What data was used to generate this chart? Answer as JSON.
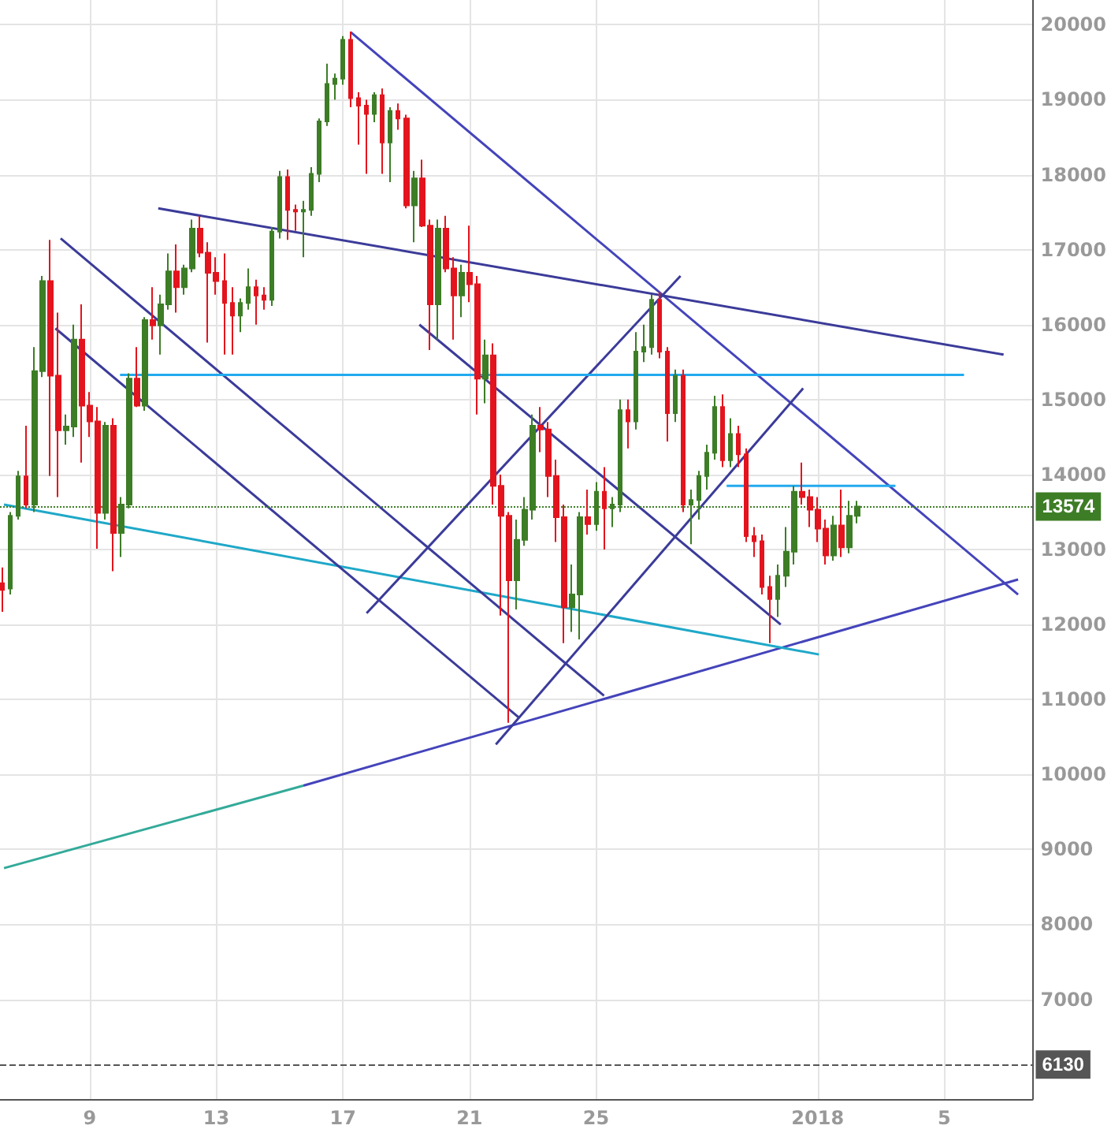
{
  "chart_data": {
    "type": "candlestick",
    "x": [
      "2017-12-06T06:00",
      "2017-12-06T12:00",
      "2017-12-06T18:00",
      "2017-12-07T00:00",
      "2017-12-07T06:00",
      "2017-12-07T12:00",
      "2017-12-07T18:00",
      "2017-12-08T00:00",
      "2017-12-08T06:00",
      "2017-12-08T12:00",
      "2017-12-08T18:00",
      "2017-12-09T00:00",
      "2017-12-09T06:00",
      "2017-12-09T12:00",
      "2017-12-09T18:00",
      "2017-12-10T00:00",
      "2017-12-10T06:00",
      "2017-12-10T12:00",
      "2017-12-10T18:00",
      "2017-12-11T00:00",
      "2017-12-11T06:00",
      "2017-12-11T12:00",
      "2017-12-11T18:00",
      "2017-12-12T00:00",
      "2017-12-12T06:00",
      "2017-12-12T12:00",
      "2017-12-12T18:00",
      "2017-12-13T00:00",
      "2017-12-13T06:00",
      "2017-12-13T12:00",
      "2017-12-13T18:00",
      "2017-12-14T00:00",
      "2017-12-14T06:00",
      "2017-12-14T12:00",
      "2017-12-14T18:00",
      "2017-12-15T00:00",
      "2017-12-15T06:00",
      "2017-12-15T12:00",
      "2017-12-15T18:00",
      "2017-12-16T00:00",
      "2017-12-16T06:00",
      "2017-12-16T12:00",
      "2017-12-16T18:00",
      "2017-12-17T00:00",
      "2017-12-17T06:00",
      "2017-12-17T12:00",
      "2017-12-17T18:00",
      "2017-12-18T00:00",
      "2017-12-18T06:00",
      "2017-12-18T12:00",
      "2017-12-18T18:00",
      "2017-12-19T00:00",
      "2017-12-19T06:00",
      "2017-12-19T12:00",
      "2017-12-19T18:00",
      "2017-12-20T00:00",
      "2017-12-20T06:00",
      "2017-12-20T12:00",
      "2017-12-20T18:00",
      "2017-12-21T00:00",
      "2017-12-21T06:00",
      "2017-12-21T12:00",
      "2017-12-21T18:00",
      "2017-12-22T00:00",
      "2017-12-22T06:00",
      "2017-12-22T12:00",
      "2017-12-22T18:00",
      "2017-12-23T00:00",
      "2017-12-23T06:00",
      "2017-12-23T12:00",
      "2017-12-23T18:00",
      "2017-12-24T00:00",
      "2017-12-24T06:00",
      "2017-12-24T12:00",
      "2017-12-24T18:00",
      "2017-12-25T00:00",
      "2017-12-25T06:00",
      "2017-12-25T12:00",
      "2017-12-25T18:00",
      "2017-12-26T00:00",
      "2017-12-26T06:00",
      "2017-12-26T12:00",
      "2017-12-26T18:00",
      "2017-12-27T00:00",
      "2017-12-27T06:00",
      "2017-12-27T12:00",
      "2017-12-27T18:00",
      "2017-12-28T00:00",
      "2017-12-28T06:00",
      "2017-12-28T12:00",
      "2017-12-28T18:00",
      "2017-12-29T00:00",
      "2017-12-29T06:00",
      "2017-12-29T12:00",
      "2017-12-29T18:00",
      "2017-12-30T00:00",
      "2017-12-30T06:00",
      "2017-12-30T12:00",
      "2017-12-30T18:00",
      "2017-12-31T00:00",
      "2017-12-31T06:00",
      "2017-12-31T12:00",
      "2017-12-31T18:00",
      "2018-01-01T00:00",
      "2018-01-01T06:00",
      "2018-01-01T12:00",
      "2018-01-01T18:00",
      "2018-01-02T00:00",
      "2018-01-02T06:00"
    ],
    "ohlc": [
      [
        12550,
        12760,
        12170,
        12460
      ],
      [
        12480,
        13500,
        12400,
        13450
      ],
      [
        13450,
        14050,
        13400,
        13975
      ],
      [
        13975,
        14650,
        13550,
        13600
      ],
      [
        13600,
        15700,
        13500,
        15380
      ],
      [
        15380,
        16650,
        15300,
        16580
      ],
      [
        16580,
        17130,
        13980,
        15320
      ],
      [
        15320,
        16160,
        13700,
        14590
      ],
      [
        14590,
        14800,
        14400,
        14640
      ],
      [
        14640,
        16000,
        14500,
        15800
      ],
      [
        15800,
        16270,
        14160,
        14920
      ],
      [
        14920,
        15100,
        14500,
        14710
      ],
      [
        14710,
        14900,
        13010,
        13490
      ],
      [
        13490,
        14700,
        13400,
        14650
      ],
      [
        14650,
        14750,
        12710,
        13220
      ],
      [
        13220,
        13700,
        12900,
        13600
      ],
      [
        13600,
        15350,
        13550,
        15280
      ],
      [
        15280,
        15700,
        14900,
        14920
      ],
      [
        14920,
        16100,
        14850,
        16060
      ],
      [
        16060,
        16500,
        15800,
        15990
      ],
      [
        15990,
        16400,
        15600,
        16270
      ],
      [
        16270,
        16950,
        16200,
        16710
      ],
      [
        16710,
        17070,
        16160,
        16500
      ],
      [
        16500,
        16800,
        16400,
        16750
      ],
      [
        16750,
        17400,
        16700,
        17280
      ],
      [
        17280,
        17450,
        16900,
        16960
      ],
      [
        16960,
        17100,
        15760,
        16690
      ],
      [
        16690,
        16900,
        16400,
        16580
      ],
      [
        16580,
        16950,
        15600,
        16290
      ],
      [
        16290,
        16500,
        15600,
        16120
      ],
      [
        16120,
        16350,
        15900,
        16290
      ],
      [
        16290,
        16750,
        16200,
        16500
      ],
      [
        16500,
        16600,
        16000,
        16390
      ],
      [
        16390,
        16500,
        16200,
        16330
      ],
      [
        16330,
        17300,
        16250,
        17240
      ],
      [
        17240,
        18050,
        17150,
        17970
      ],
      [
        17970,
        18070,
        17130,
        17530
      ],
      [
        17530,
        17600,
        17250,
        17510
      ],
      [
        17510,
        17650,
        16900,
        17530
      ],
      [
        17530,
        18100,
        17450,
        18010
      ],
      [
        18010,
        18750,
        17900,
        18710
      ],
      [
        18710,
        19480,
        18650,
        19210
      ],
      [
        19210,
        19350,
        19000,
        19280
      ],
      [
        19280,
        19850,
        19200,
        19800
      ],
      [
        19800,
        19910,
        18900,
        19020
      ],
      [
        19020,
        19100,
        18400,
        18920
      ],
      [
        18920,
        19000,
        18010,
        18810
      ],
      [
        18810,
        19100,
        18700,
        19060
      ],
      [
        19060,
        19150,
        18010,
        18430
      ],
      [
        18430,
        18900,
        17900,
        18850
      ],
      [
        18850,
        18950,
        18600,
        18750
      ],
      [
        18750,
        18800,
        17550,
        17590
      ],
      [
        17590,
        18050,
        17100,
        17950
      ],
      [
        17950,
        18200,
        17300,
        17320
      ],
      [
        17320,
        17400,
        15660,
        16270
      ],
      [
        16270,
        17400,
        15800,
        17280
      ],
      [
        17280,
        17450,
        16700,
        16750
      ],
      [
        16750,
        16900,
        15800,
        16390
      ],
      [
        16390,
        16800,
        16100,
        16690
      ],
      [
        16690,
        17320,
        16300,
        16540
      ],
      [
        16540,
        16650,
        14800,
        15280
      ],
      [
        15280,
        15800,
        14950,
        15590
      ],
      [
        15590,
        15750,
        13600,
        13850
      ],
      [
        13850,
        14000,
        12120,
        13450
      ],
      [
        13450,
        13500,
        10690,
        12590
      ],
      [
        12590,
        13400,
        12200,
        13130
      ],
      [
        13130,
        13700,
        13050,
        13530
      ],
      [
        13530,
        14800,
        13400,
        14650
      ],
      [
        14650,
        14900,
        14300,
        14600
      ],
      [
        14600,
        14700,
        13700,
        13980
      ],
      [
        13980,
        14200,
        13100,
        13430
      ],
      [
        13430,
        13600,
        11750,
        12230
      ],
      [
        12230,
        12800,
        11900,
        12400
      ],
      [
        12400,
        13500,
        11800,
        13430
      ],
      [
        13430,
        13800,
        13200,
        13340
      ],
      [
        13340,
        13900,
        13250,
        13770
      ],
      [
        13770,
        14100,
        13000,
        13550
      ],
      [
        13550,
        13700,
        13300,
        13600
      ],
      [
        13600,
        15000,
        13500,
        14860
      ],
      [
        14860,
        15000,
        14350,
        14710
      ],
      [
        14710,
        15900,
        14600,
        15640
      ],
      [
        15640,
        16000,
        15500,
        15700
      ],
      [
        15700,
        16400,
        15600,
        16330
      ],
      [
        16330,
        16440,
        15550,
        15640
      ],
      [
        15640,
        15700,
        14440,
        14820
      ],
      [
        14820,
        15400,
        14700,
        15320
      ],
      [
        15320,
        15400,
        13500,
        13600
      ],
      [
        13600,
        13800,
        13070,
        13660
      ],
      [
        13660,
        14050,
        13400,
        13980
      ],
      [
        13980,
        14400,
        13800,
        14290
      ],
      [
        14290,
        15050,
        14200,
        14900
      ],
      [
        14900,
        15070,
        14100,
        14190
      ],
      [
        14190,
        14750,
        14100,
        14540
      ],
      [
        14540,
        14650,
        14100,
        14270
      ],
      [
        14270,
        14350,
        13100,
        13180
      ],
      [
        13180,
        13300,
        12900,
        13110
      ],
      [
        13110,
        13200,
        12400,
        12500
      ],
      [
        12500,
        12650,
        11750,
        12340
      ],
      [
        12340,
        12800,
        12100,
        12650
      ],
      [
        12650,
        13300,
        12500,
        12970
      ],
      [
        12970,
        13850,
        12800,
        13770
      ],
      [
        13770,
        14160,
        13600,
        13700
      ],
      [
        13700,
        13800,
        13300,
        13530
      ],
      [
        13530,
        13700,
        13100,
        13280
      ],
      [
        13280,
        13400,
        12800,
        12920
      ],
      [
        12920,
        13450,
        12850,
        13320
      ],
      [
        13320,
        13800,
        12900,
        13030
      ],
      [
        13030,
        13650,
        12950,
        13450
      ],
      [
        13450,
        13650,
        13350,
        13574
      ]
    ],
    "colors": [
      "#e3141d",
      "#3d7d26",
      "#3d7d26",
      "#e3141d",
      "#3d7d26",
      "#3d7d26",
      "#e3141d",
      "#e3141d",
      "#3d7d26",
      "#3d7d26",
      "#e3141d",
      "#e3141d",
      "#e3141d",
      "#3d7d26",
      "#e3141d",
      "#3d7d26",
      "#3d7d26",
      "#e3141d",
      "#3d7d26",
      "#e3141d",
      "#3d7d26",
      "#3d7d26",
      "#e3141d",
      "#3d7d26",
      "#3d7d26",
      "#e3141d",
      "#e3141d",
      "#e3141d",
      "#e3141d",
      "#e3141d",
      "#3d7d26",
      "#3d7d26",
      "#e3141d",
      "#e3141d",
      "#3d7d26",
      "#3d7d26",
      "#e3141d",
      "#e3141d",
      "#3d7d26",
      "#3d7d26",
      "#3d7d26",
      "#3d7d26",
      "#3d7d26",
      "#3d7d26",
      "#e3141d",
      "#e3141d",
      "#e3141d",
      "#3d7d26",
      "#e3141d",
      "#3d7d26",
      "#e3141d",
      "#e3141d",
      "#3d7d26",
      "#e3141d",
      "#e3141d",
      "#3d7d26",
      "#e3141d",
      "#e3141d",
      "#3d7d26",
      "#e3141d",
      "#e3141d",
      "#3d7d26",
      "#e3141d",
      "#e3141d",
      "#e3141d",
      "#3d7d26",
      "#3d7d26",
      "#3d7d26",
      "#e3141d",
      "#e3141d",
      "#e3141d",
      "#e3141d",
      "#3d7d26",
      "#3d7d26",
      "#e3141d",
      "#3d7d26",
      "#e3141d",
      "#3d7d26",
      "#3d7d26",
      "#e3141d",
      "#3d7d26",
      "#3d7d26",
      "#3d7d26",
      "#e3141d",
      "#e3141d",
      "#3d7d26",
      "#e3141d",
      "#3d7d26",
      "#3d7d26",
      "#3d7d26",
      "#3d7d26",
      "#e3141d",
      "#3d7d26",
      "#e3141d",
      "#e3141d",
      "#e3141d",
      "#e3141d",
      "#e3141d",
      "#3d7d26",
      "#3d7d26",
      "#3d7d26",
      "#e3141d",
      "#e3141d",
      "#e3141d",
      "#e3141d",
      "#3d7d26",
      "#e3141d",
      "#3d7d26",
      "#3d7d26"
    ],
    "series": [
      {
        "type": "line",
        "x": [
          "2017-12-17T06:00",
          "2018-01-07T08:00"
        ],
        "values": [
          19900,
          12400
        ],
        "color": "#4444bb"
      },
      {
        "type": "line",
        "x": [
          "2017-12-15T18:00",
          "2018-01-07T08:00"
        ],
        "values": [
          9850,
          12600
        ],
        "color": "#4444bb"
      },
      {
        "type": "line",
        "x": [
          "2017-12-06T07:00",
          "2017-12-15T18:00"
        ],
        "values": [
          8750,
          9850
        ],
        "color": "#33aa99"
      },
      {
        "type": "line",
        "x": [
          "2017-12-11T04:00",
          "2018-01-06T21:00"
        ],
        "values": [
          17550,
          15600
        ],
        "color": "#3b3b9a"
      },
      {
        "type": "line",
        "x": [
          "2017-12-06T07:00",
          "2018-01-01T01:00"
        ],
        "values": [
          13600,
          11600
        ],
        "color": "#1fa8c8"
      },
      {
        "type": "line",
        "x": [
          "2017-12-08T02:00",
          "2017-12-25T06:00"
        ],
        "values": [
          17150,
          11050
        ],
        "color": "#3b3b9a"
      },
      {
        "type": "line",
        "x": [
          "2017-12-07T22:00",
          "2017-12-22T14:00"
        ],
        "values": [
          15950,
          10750
        ],
        "color": "#3b3b9a"
      },
      {
        "type": "line",
        "x": [
          "2017-12-19T10:00",
          "2017-12-30T20:00"
        ],
        "values": [
          16000,
          12000
        ],
        "color": "#3b3b9a"
      },
      {
        "type": "line",
        "x": [
          "2017-12-17T18:00",
          "2017-12-27T16:00"
        ],
        "values": [
          12150,
          16650
        ],
        "color": "#3b3b9a"
      },
      {
        "type": "line",
        "x": [
          "2017-12-21T20:00",
          "2017-12-31T13:00"
        ],
        "values": [
          10400,
          15150
        ],
        "color": "#3b3b9a"
      },
      {
        "type": "line",
        "x": [
          "2017-12-09T23:00",
          "2018-01-05T15:00"
        ],
        "values": [
          15330,
          15330
        ],
        "color": "#22aaee"
      },
      {
        "type": "line",
        "x": [
          "2017-12-29T03:00",
          "2018-01-03T11:00"
        ],
        "values": [
          13850,
          13850
        ],
        "color": "#22aaee"
      }
    ],
    "ref_lines": [
      {
        "axis": "y",
        "value": 13574,
        "label": "13574",
        "color": "#3d7d26",
        "line_style": "dotted"
      },
      {
        "axis": "y",
        "value": 6130,
        "label": "6130",
        "color": "#555555",
        "line_style": "dashed"
      }
    ],
    "xlim": [
      "2017-12-06T04:00",
      "2018-01-07T19:00"
    ],
    "ylim": [
      5670,
      20330
    ],
    "xticks": [
      {
        "value": "2017-12-09",
        "label": "9"
      },
      {
        "value": "2017-12-13",
        "label": "13"
      },
      {
        "value": "2017-12-17",
        "label": "17"
      },
      {
        "value": "2017-12-21",
        "label": "21"
      },
      {
        "value": "2017-12-25",
        "label": "25"
      },
      {
        "value": "2018-01-01",
        "label": "2018"
      },
      {
        "value": "2018-01-05",
        "label": "5"
      }
    ],
    "yticks": [
      7000,
      8000,
      9000,
      10000,
      11000,
      12000,
      13000,
      14000,
      15000,
      16000,
      17000,
      18000,
      19000,
      20000
    ],
    "grid": true,
    "marker": "none"
  }
}
